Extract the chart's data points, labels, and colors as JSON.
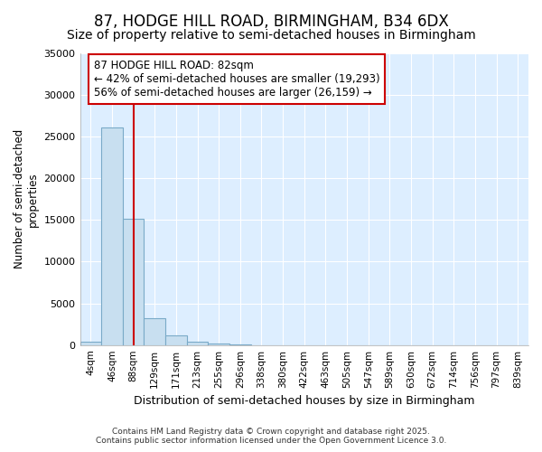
{
  "title": "87, HODGE HILL ROAD, BIRMINGHAM, B34 6DX",
  "subtitle": "Size of property relative to semi-detached houses in Birmingham",
  "xlabel": "Distribution of semi-detached houses by size in Birmingham",
  "ylabel": "Number of semi-detached\nproperties",
  "bin_labels": [
    "4sqm",
    "46sqm",
    "88sqm",
    "129sqm",
    "171sqm",
    "213sqm",
    "255sqm",
    "296sqm",
    "338sqm",
    "380sqm",
    "422sqm",
    "463sqm",
    "505sqm",
    "547sqm",
    "589sqm",
    "630sqm",
    "672sqm",
    "714sqm",
    "756sqm",
    "797sqm",
    "839sqm"
  ],
  "bar_values": [
    400,
    26100,
    15200,
    3200,
    1200,
    450,
    220,
    60,
    0,
    0,
    0,
    0,
    0,
    0,
    0,
    0,
    0,
    0,
    0,
    0,
    0
  ],
  "bar_color": "#c8dff0",
  "bar_edge_color": "#7aaac8",
  "bar_edge_width": 0.8,
  "property_line_x": 2,
  "property_line_color": "#cc0000",
  "ylim": [
    0,
    35000
  ],
  "yticks": [
    0,
    5000,
    10000,
    15000,
    20000,
    25000,
    30000,
    35000
  ],
  "annotation_text": "87 HODGE HILL ROAD: 82sqm\n← 42% of semi-detached houses are smaller (19,293)\n56% of semi-detached houses are larger (26,159) →",
  "annotation_box_color": "#ffffff",
  "annotation_box_edge": "#cc0000",
  "footnote1": "Contains HM Land Registry data © Crown copyright and database right 2025.",
  "footnote2": "Contains public sector information licensed under the Open Government Licence 3.0.",
  "fig_background_color": "#ffffff",
  "axes_background": "#ddeeff",
  "grid_color": "#ffffff",
  "title_fontsize": 12,
  "subtitle_fontsize": 10,
  "annot_fontsize": 8.5
}
